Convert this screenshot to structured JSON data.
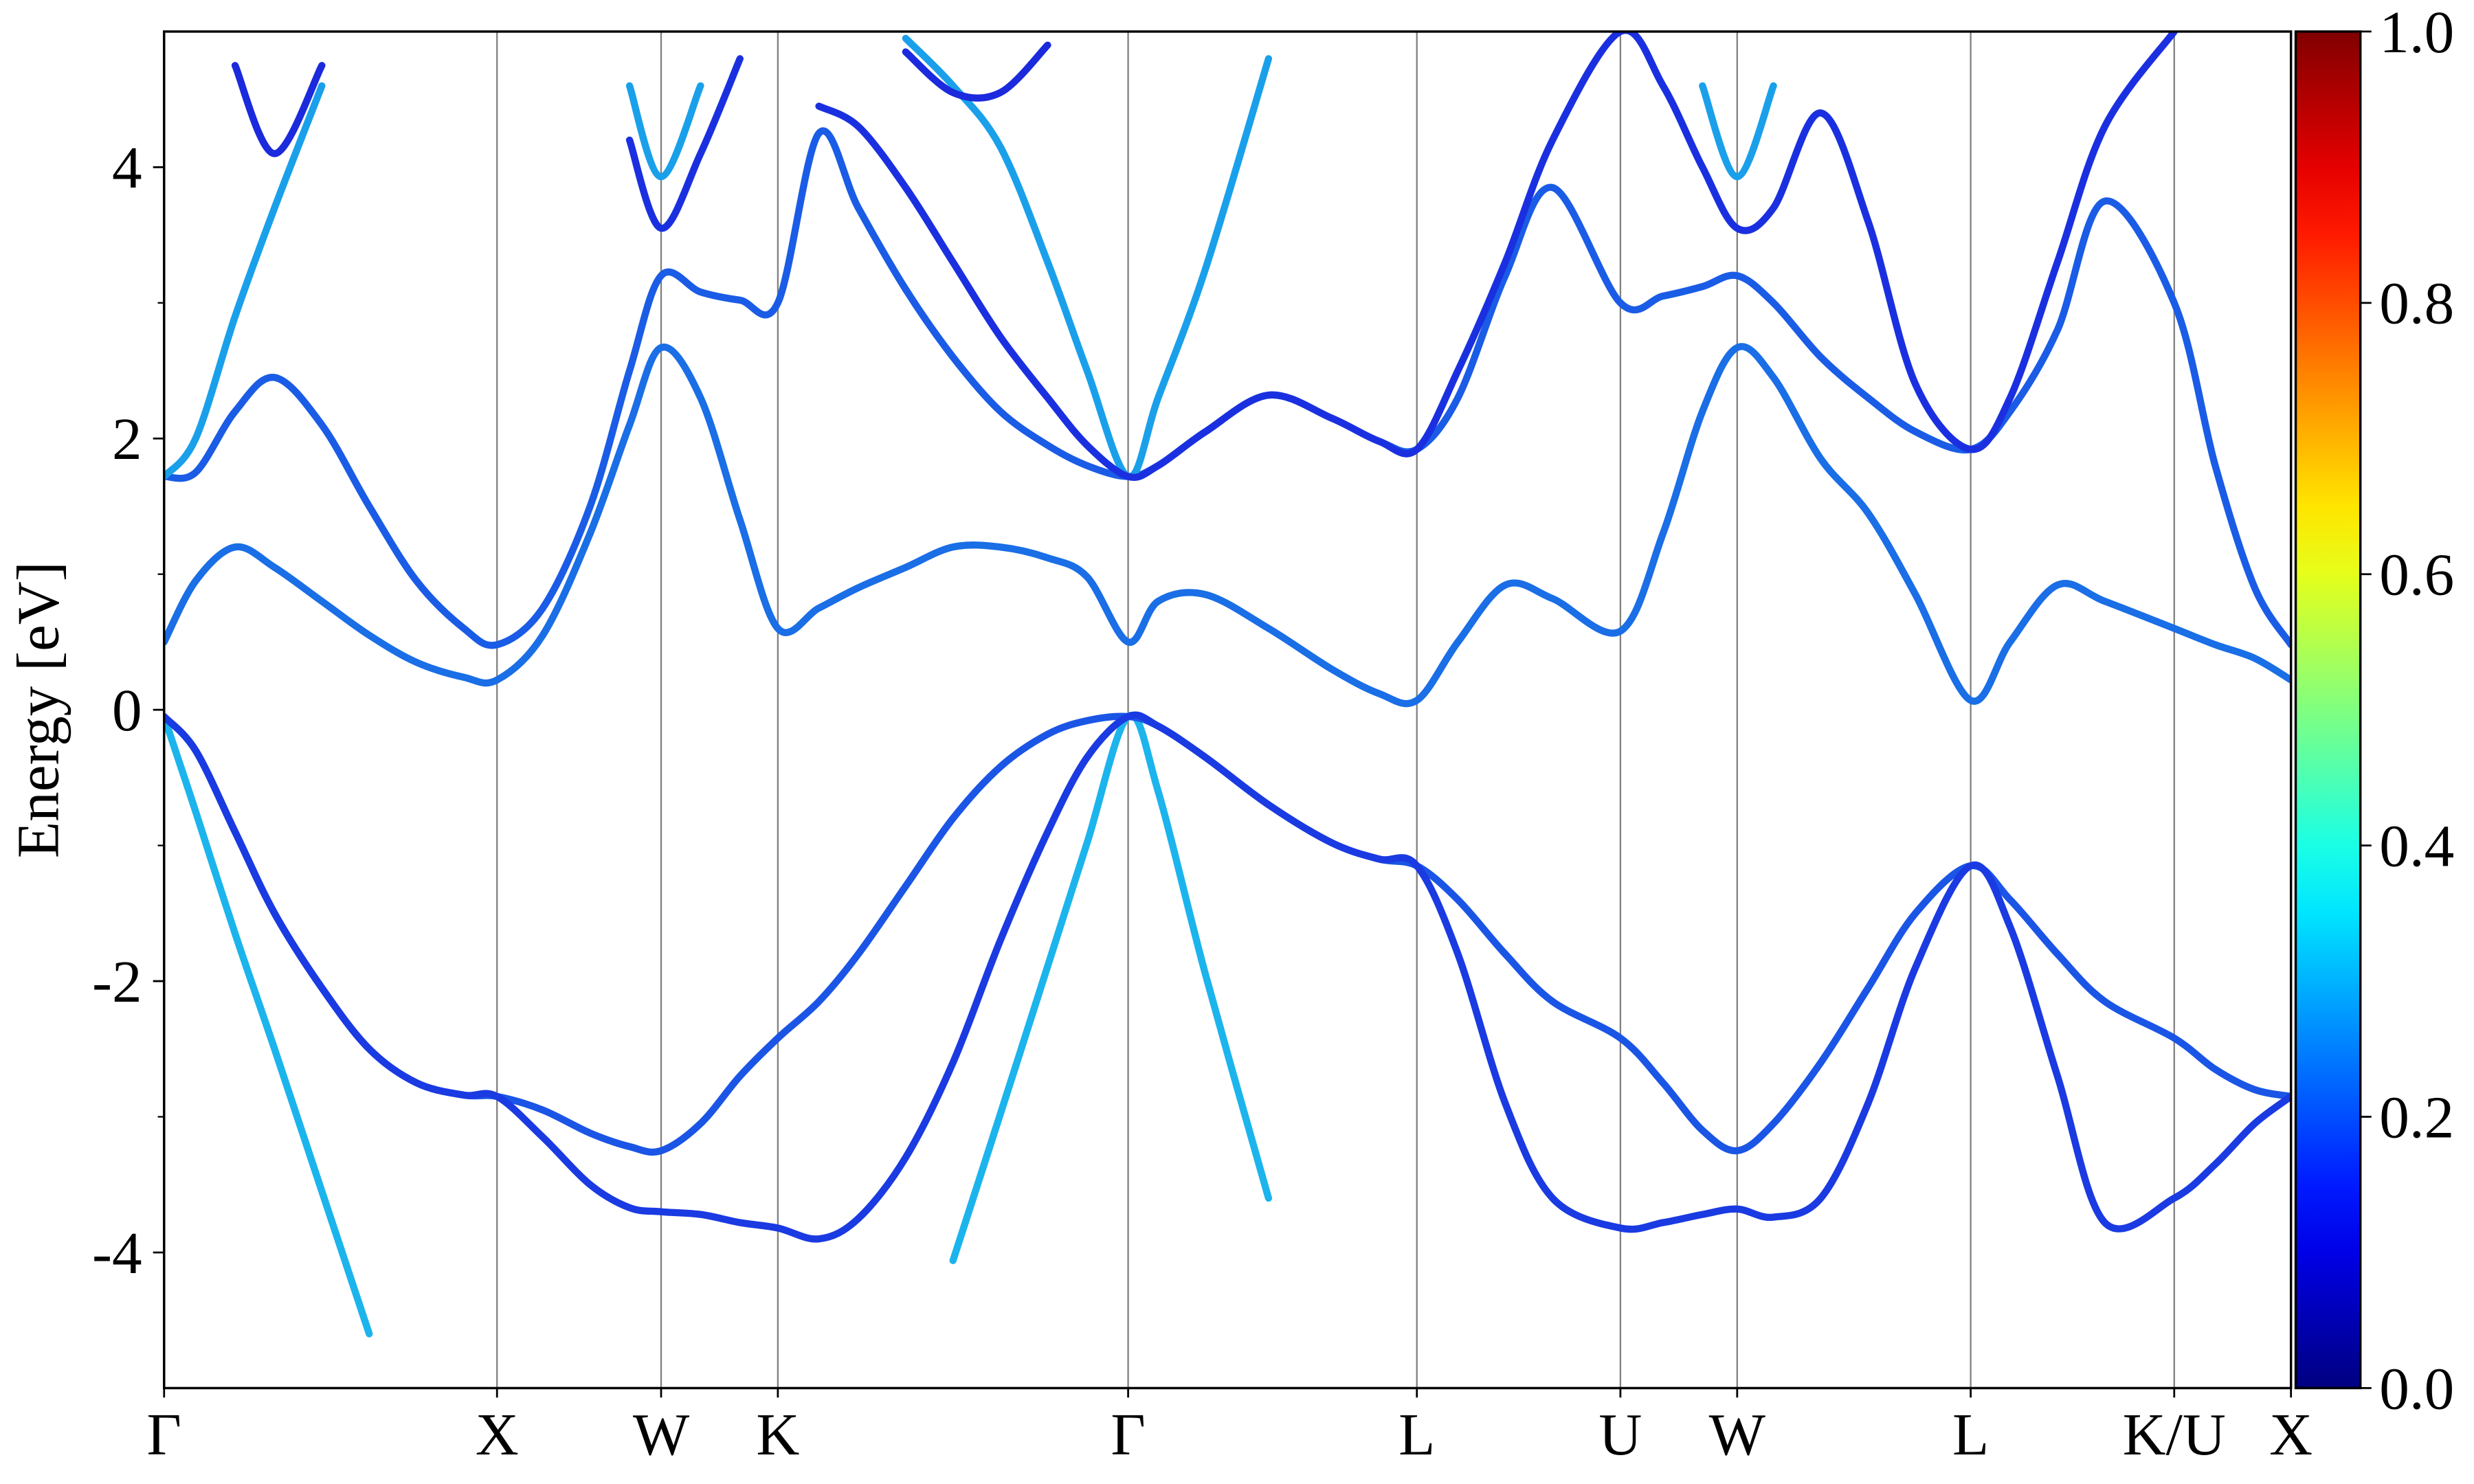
{
  "chart_data": {
    "type": "line",
    "y_label": "Energy [eV]",
    "xlim": [
      0,
      1348
    ],
    "ylim": [
      -5,
      5
    ],
    "xticks": [
      {
        "value": 0,
        "label": "Γ"
      },
      {
        "value": 211,
        "label": "X"
      },
      {
        "value": 315,
        "label": "W"
      },
      {
        "value": 389,
        "label": "K"
      },
      {
        "value": 611,
        "label": "Γ"
      },
      {
        "value": 794,
        "label": "L"
      },
      {
        "value": 923,
        "label": "U"
      },
      {
        "value": 997,
        "label": "W"
      },
      {
        "value": 1145,
        "label": "L"
      },
      {
        "value": 1274,
        "label": "K/U"
      },
      {
        "value": 1348,
        "label": "X"
      }
    ],
    "yticks": [
      -4,
      -2,
      0,
      2,
      4
    ],
    "yminorticks": [
      -3,
      -1,
      1,
      3
    ],
    "xgrid": true,
    "colorbar": {
      "colormap": "jet",
      "lim": [
        0,
        1
      ],
      "ticks": [
        {
          "value": 0,
          "label": "0.0"
        },
        {
          "value": 0.2,
          "label": "0.2"
        },
        {
          "value": 0.4,
          "label": "0.4"
        },
        {
          "value": 0.6,
          "label": "0.6"
        },
        {
          "value": 0.8,
          "label": "0.8"
        },
        {
          "value": 1,
          "label": "1.0"
        }
      ]
    },
    "x": [
      0,
      20,
      45,
      70,
      100,
      130,
      160,
      190,
      211,
      240,
      270,
      295,
      315,
      340,
      365,
      389,
      415,
      440,
      470,
      500,
      530,
      560,
      585,
      611,
      630,
      660,
      700,
      740,
      770,
      794,
      820,
      850,
      880,
      923,
      950,
      975,
      997,
      1020,
      1050,
      1080,
      1110,
      1145,
      1170,
      1200,
      1230,
      1274,
      1300,
      1325,
      1348
    ],
    "series": [
      {
        "color": "#1cb4ec",
        "values": [
          -0.05,
          -0.75,
          -1.65,
          -2.5,
          -3.55,
          -4.6,
          null,
          null,
          null,
          null,
          null,
          null,
          null,
          null,
          null,
          null,
          null,
          null,
          null,
          -4.06,
          -2.98,
          -1.89,
          -0.98,
          -0.05,
          -0.6,
          -1.95,
          -3.6,
          null,
          null,
          null,
          null,
          null,
          null,
          null,
          null,
          null,
          null,
          null,
          null,
          null,
          null,
          null,
          null,
          null,
          null,
          null,
          null,
          null,
          null
        ]
      },
      {
        "color": "#1a55e6",
        "values": [
          -0.05,
          -0.3,
          -0.9,
          -1.5,
          -2.05,
          -2.5,
          -2.75,
          -2.84,
          -2.85,
          -2.95,
          -3.12,
          -3.22,
          -3.25,
          -3.05,
          -2.7,
          -2.42,
          -2.15,
          -1.8,
          -1.3,
          -0.8,
          -0.42,
          -0.18,
          -0.08,
          -0.05,
          -0.12,
          -0.35,
          -0.7,
          -0.98,
          -1.1,
          -1.15,
          -1.4,
          -1.8,
          -2.15,
          -2.42,
          -2.75,
          -3.1,
          -3.25,
          -3.05,
          -2.6,
          -2.05,
          -1.5,
          -1.15,
          -1.4,
          -1.8,
          -2.15,
          -2.42,
          -2.65,
          -2.8,
          -2.85
        ]
      },
      {
        "color": "#1a3ae2",
        "values": [
          -0.05,
          -0.3,
          -0.9,
          -1.5,
          -2.05,
          -2.5,
          -2.75,
          -2.84,
          -2.85,
          -3.15,
          -3.5,
          -3.67,
          -3.7,
          -3.72,
          -3.78,
          -3.82,
          -3.9,
          -3.75,
          -3.3,
          -2.6,
          -1.7,
          -0.9,
          -0.35,
          -0.05,
          -0.12,
          -0.35,
          -0.7,
          -0.98,
          -1.1,
          -1.15,
          -1.8,
          -2.9,
          -3.6,
          -3.82,
          -3.78,
          -3.72,
          -3.68,
          -3.74,
          -3.6,
          -2.9,
          -1.9,
          -1.15,
          -1.6,
          -2.7,
          -3.78,
          -3.6,
          -3.35,
          -3.05,
          -2.85
        ]
      },
      {
        "color": "#1a6ee6",
        "values": [
          0.5,
          0.95,
          1.2,
          1.05,
          0.8,
          0.55,
          0.35,
          0.24,
          0.22,
          0.55,
          1.3,
          2.1,
          2.67,
          2.3,
          1.4,
          0.6,
          0.75,
          0.9,
          1.05,
          1.2,
          1.2,
          1.12,
          0.98,
          0.5,
          0.8,
          0.85,
          0.6,
          0.3,
          0.12,
          0.07,
          0.5,
          0.92,
          0.82,
          0.58,
          1.3,
          2.2,
          2.67,
          2.45,
          1.85,
          1.45,
          0.85,
          0.07,
          0.5,
          0.92,
          0.8,
          0.6,
          0.48,
          0.38,
          0.22
        ]
      },
      {
        "color": "#1a5ce6",
        "values": [
          1.72,
          1.75,
          2.2,
          2.45,
          2.1,
          1.5,
          0.95,
          0.6,
          0.48,
          0.75,
          1.5,
          2.5,
          3.2,
          3.08,
          3.02,
          3.0,
          4.25,
          3.7,
          3.1,
          2.6,
          2.2,
          1.95,
          1.8,
          1.72,
          1.8,
          2.05,
          2.32,
          2.15,
          1.98,
          1.92,
          2.3,
          3.2,
          3.85,
          3.0,
          3.05,
          3.12,
          3.2,
          3.0,
          2.6,
          2.3,
          2.05,
          1.92,
          2.2,
          2.8,
          3.75,
          3.0,
          1.8,
          0.9,
          0.48
        ]
      },
      {
        "color": "#1aa0ea",
        "values": [
          1.72,
          2.0,
          2.9,
          3.7,
          4.6,
          null,
          null,
          null,
          null,
          null,
          null,
          4.6,
          3.93,
          4.6,
          null,
          null,
          null,
          null,
          4.95,
          4.6,
          4.15,
          3.3,
          2.5,
          1.72,
          2.3,
          3.25,
          4.8,
          null,
          null,
          null,
          null,
          null,
          null,
          null,
          null,
          4.6,
          3.93,
          4.6,
          null,
          null,
          null,
          null,
          null,
          null,
          null,
          null,
          null,
          null,
          null
        ]
      },
      {
        "color": "#1a30e0",
        "values": [
          null,
          null,
          null,
          null,
          null,
          null,
          null,
          null,
          null,
          null,
          null,
          4.2,
          3.55,
          4.1,
          4.8,
          null,
          4.45,
          4.3,
          3.85,
          3.3,
          2.75,
          2.3,
          1.95,
          1.72,
          1.8,
          2.05,
          2.32,
          2.15,
          1.98,
          1.92,
          2.5,
          3.3,
          4.2,
          5.0,
          4.6,
          4.0,
          3.55,
          3.7,
          4.4,
          3.6,
          2.4,
          1.92,
          2.3,
          3.3,
          4.3,
          5.0,
          null,
          null,
          null
        ]
      },
      {
        "color": "#1a2adc",
        "values": [
          null,
          null,
          4.75,
          4.1,
          4.75,
          null,
          null,
          null,
          null,
          null,
          null,
          null,
          null,
          null,
          null,
          null,
          null,
          null,
          4.85,
          4.55,
          4.55,
          4.9,
          null,
          null,
          null,
          null,
          null,
          null,
          null,
          null,
          null,
          null,
          null,
          null,
          null,
          null,
          null,
          null,
          null,
          null,
          null,
          null,
          null,
          null,
          null,
          null,
          null,
          null,
          null
        ]
      }
    ]
  }
}
